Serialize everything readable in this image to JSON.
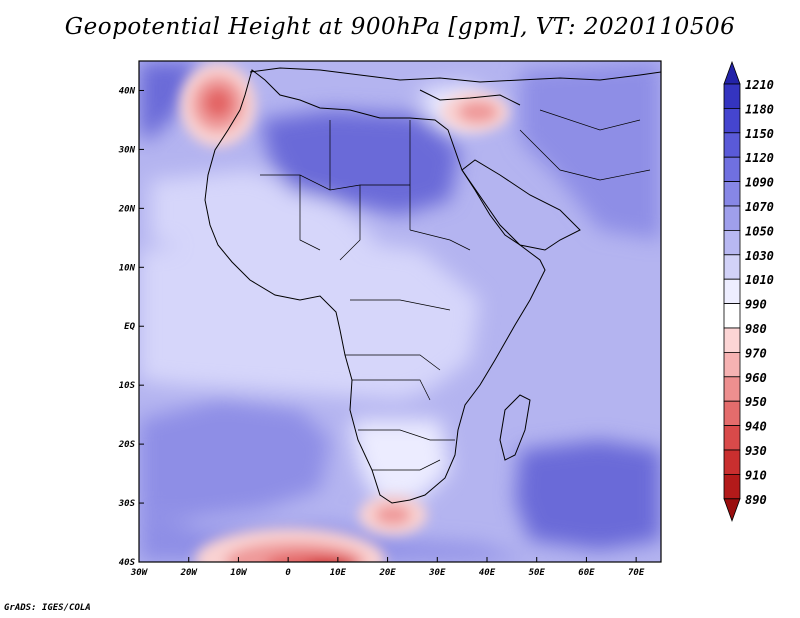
{
  "title": "Geopotential Height at 900hPa [gpm], VT: 2020110506",
  "credit": "GrADS: IGES/COLA",
  "map": {
    "lat_labels": [
      "40N",
      "30N",
      "20N",
      "10N",
      "EQ",
      "10S",
      "20S",
      "30S",
      "40S"
    ],
    "lon_labels": [
      "30W",
      "20W",
      "10W",
      "0",
      "10E",
      "20E",
      "30E",
      "40E",
      "50E",
      "60E",
      "70E"
    ],
    "lon_range": [
      -30,
      75
    ],
    "lat_range": [
      -40,
      45
    ]
  },
  "colorbar": {
    "levels": [
      "1210",
      "1180",
      "1150",
      "1120",
      "1090",
      "1070",
      "1050",
      "1030",
      "1010",
      "990",
      "980",
      "970",
      "960",
      "950",
      "940",
      "930",
      "910",
      "890"
    ],
    "colors": [
      "#2323a8",
      "#3434c0",
      "#4545cf",
      "#5a5ad8",
      "#7070e0",
      "#8787e6",
      "#9f9fec",
      "#b8b8f2",
      "#d2d2f8",
      "#eeeeff",
      "#ffffff",
      "#fcd5d5",
      "#f6b2b2",
      "#ee8f8f",
      "#e46c6c",
      "#d94a4a",
      "#c92f2f",
      "#b31a1a",
      "#9a0e0e"
    ]
  },
  "field_colors": {
    "background": "#b4b4f0",
    "strong": "#6a6ad8",
    "medium": "#8e8ee6",
    "light": "#d6d6fa",
    "very_light": "#ececff",
    "low_pale": "#f9d2d2",
    "low_mid": "#ef9a9a",
    "low_core": "#e36565",
    "low_deep": "#cf3030"
  }
}
